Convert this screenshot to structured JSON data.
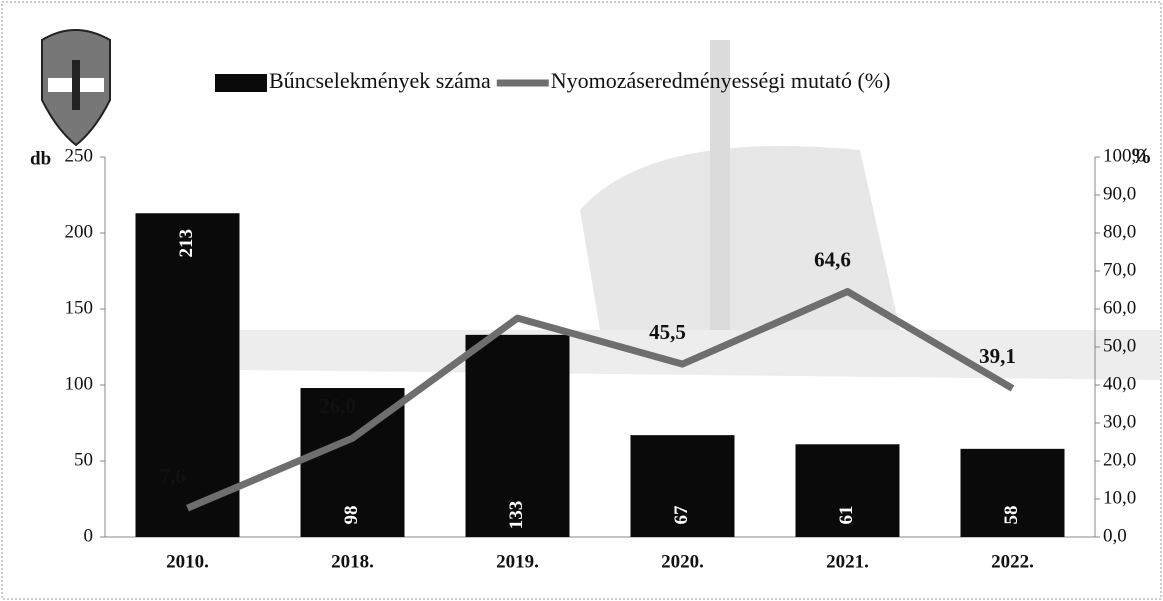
{
  "chart_data": {
    "type": "bar",
    "categories": [
      "2010.",
      "2018.",
      "2019.",
      "2020.",
      "2021.",
      "2022."
    ],
    "series": [
      {
        "name": "Bűncselekmények száma",
        "type": "bar",
        "color": "#0a0a0a",
        "values": [
          213,
          98,
          133,
          67,
          61,
          58
        ]
      },
      {
        "name": "Nyomozáseredményességi mutató (%)",
        "type": "line",
        "axis": "y2",
        "color": "#6e6e6e",
        "values": [
          7.6,
          26.0,
          57.6,
          45.5,
          64.6,
          39.1
        ],
        "value_labels": [
          "7,6",
          "26,0",
          null,
          "45,5",
          "64,6",
          "39,1"
        ]
      }
    ],
    "y_label": "db",
    "y2_label": "%",
    "ylim": [
      0,
      250
    ],
    "yticks": [
      0,
      50,
      100,
      150,
      200,
      250
    ],
    "y2lim": [
      0,
      100
    ],
    "y2ticks": [
      {
        "value": 0,
        "label": "0,0"
      },
      {
        "value": 10,
        "label": "10,0"
      },
      {
        "value": 20,
        "label": "20,0"
      },
      {
        "value": 30,
        "label": "30,0"
      },
      {
        "value": 40,
        "label": "40,0"
      },
      {
        "value": 50,
        "label": "50,0"
      },
      {
        "value": 60,
        "label": "60,0"
      },
      {
        "value": 70,
        "label": "70,0"
      },
      {
        "value": 80,
        "label": "80,0"
      },
      {
        "value": 90,
        "label": "90,0"
      },
      {
        "value": 100,
        "label": "100,0"
      }
    ]
  }
}
